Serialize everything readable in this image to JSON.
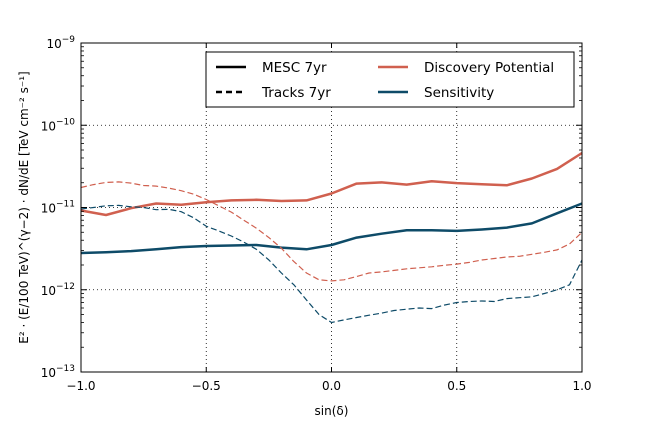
{
  "chart_data": {
    "type": "line",
    "xlabel": "sin(δ)",
    "ylabel": "E² · (E/100 TeV)^(γ−2) · dN/dE  [TeV cm⁻² s⁻¹]",
    "xlim": [
      -1.0,
      1.0
    ],
    "ylim": [
      1e-13,
      1e-09
    ],
    "yscale": "log",
    "grid": true,
    "legend_position": "upper right",
    "x_ticks": [
      "−1.0",
      "−0.5",
      "0.0",
      "0.5",
      "1.0"
    ],
    "y_ticks": [
      {
        "value": 1e-13,
        "base": "10",
        "exp": "−13"
      },
      {
        "value": 1e-12,
        "base": "10",
        "exp": "−12"
      },
      {
        "value": 1e-11,
        "base": "10",
        "exp": "−11"
      },
      {
        "value": 1e-10,
        "base": "10",
        "exp": "−10"
      },
      {
        "value": 1e-09,
        "base": "10",
        "exp": "−9"
      }
    ],
    "legend": [
      {
        "label": "MESC 7yr",
        "kind": "style",
        "dash": "solid",
        "color": "#000000"
      },
      {
        "label": "Tracks 7yr",
        "kind": "style",
        "dash": "dashed",
        "color": "#000000"
      },
      {
        "label": "Discovery Potential",
        "kind": "color",
        "dash": "solid",
        "color": "#d0604f"
      },
      {
        "label": "Sensitivity",
        "kind": "color",
        "dash": "solid",
        "color": "#0e4b68"
      }
    ],
    "series": [
      {
        "key": "mesc-discovery",
        "color": "#d0604f",
        "dash": "solid",
        "width": 2.5,
        "x": [
          -1.0,
          -0.9,
          -0.8,
          -0.7,
          -0.6,
          -0.5,
          -0.4,
          -0.3,
          -0.2,
          -0.1,
          0.0,
          0.1,
          0.2,
          0.3,
          0.4,
          0.5,
          0.6,
          0.7,
          0.8,
          0.9,
          1.0
        ],
        "y": [
          9.2e-12,
          8.1e-12,
          9.8e-12,
          1.12e-11,
          1.08e-11,
          1.16e-11,
          1.22e-11,
          1.24e-11,
          1.2e-11,
          1.22e-11,
          1.48e-11,
          1.95e-11,
          2.02e-11,
          1.9e-11,
          2.08e-11,
          1.98e-11,
          1.92e-11,
          1.86e-11,
          2.25e-11,
          2.95e-11,
          4.6e-11
        ]
      },
      {
        "key": "mesc-sensitivity",
        "color": "#0e4b68",
        "dash": "solid",
        "width": 2.5,
        "x": [
          -1.0,
          -0.9,
          -0.8,
          -0.7,
          -0.6,
          -0.5,
          -0.4,
          -0.3,
          -0.2,
          -0.1,
          0.0,
          0.1,
          0.2,
          0.3,
          0.4,
          0.5,
          0.6,
          0.7,
          0.8,
          0.9,
          1.0
        ],
        "y": [
          2.8e-12,
          2.85e-12,
          2.95e-12,
          3.1e-12,
          3.3e-12,
          3.4e-12,
          3.45e-12,
          3.5e-12,
          3.25e-12,
          3.1e-12,
          3.5e-12,
          4.3e-12,
          4.8e-12,
          5.3e-12,
          5.3e-12,
          5.2e-12,
          5.4e-12,
          5.7e-12,
          6.4e-12,
          8.5e-12,
          1.12e-11
        ]
      },
      {
        "key": "tracks-discovery",
        "color": "#d0604f",
        "dash": "dashed",
        "width": 1.2,
        "x": [
          -1.0,
          -0.95,
          -0.9,
          -0.85,
          -0.8,
          -0.75,
          -0.7,
          -0.65,
          -0.6,
          -0.55,
          -0.5,
          -0.45,
          -0.4,
          -0.35,
          -0.3,
          -0.25,
          -0.2,
          -0.15,
          -0.1,
          -0.05,
          0.0,
          0.05,
          0.1,
          0.15,
          0.2,
          0.25,
          0.3,
          0.35,
          0.4,
          0.45,
          0.5,
          0.55,
          0.6,
          0.65,
          0.7,
          0.75,
          0.8,
          0.85,
          0.9,
          0.95,
          1.0
        ],
        "y": [
          1.75e-11,
          1.9e-11,
          2.02e-11,
          2.05e-11,
          1.98e-11,
          1.85e-11,
          1.82e-11,
          1.72e-11,
          1.6e-11,
          1.45e-11,
          1.25e-11,
          1.05e-11,
          8.8e-12,
          7e-12,
          5.6e-12,
          4.3e-12,
          3.2e-12,
          2.2e-12,
          1.6e-12,
          1.32e-12,
          1.28e-12,
          1.32e-12,
          1.45e-12,
          1.6e-12,
          1.65e-12,
          1.72e-12,
          1.8e-12,
          1.85e-12,
          1.9e-12,
          1.98e-12,
          2.05e-12,
          2.15e-12,
          2.3e-12,
          2.4e-12,
          2.5e-12,
          2.55e-12,
          2.7e-12,
          2.85e-12,
          3.05e-12,
          3.6e-12,
          5e-12
        ]
      },
      {
        "key": "tracks-sensitivity",
        "color": "#0e4b68",
        "dash": "dashed",
        "width": 1.2,
        "x": [
          -1.0,
          -0.95,
          -0.9,
          -0.85,
          -0.8,
          -0.75,
          -0.7,
          -0.65,
          -0.6,
          -0.55,
          -0.5,
          -0.45,
          -0.4,
          -0.35,
          -0.3,
          -0.25,
          -0.2,
          -0.15,
          -0.1,
          -0.05,
          0.0,
          0.05,
          0.1,
          0.15,
          0.2,
          0.25,
          0.3,
          0.35,
          0.4,
          0.45,
          0.5,
          0.55,
          0.6,
          0.65,
          0.7,
          0.75,
          0.8,
          0.85,
          0.9,
          0.95,
          1.0
        ],
        "y": [
          9.6e-12,
          1e-11,
          1.05e-11,
          1.06e-11,
          1.02e-11,
          1e-11,
          9.4e-12,
          9.5e-12,
          8.9e-12,
          7.5e-12,
          5.9e-12,
          5.2e-12,
          4.5e-12,
          3.8e-12,
          3.1e-12,
          2.3e-12,
          1.6e-12,
          1.15e-12,
          7.5e-13,
          5e-13,
          4e-13,
          4.3e-13,
          4.6e-13,
          4.9e-13,
          5.2e-13,
          5.6e-13,
          5.8e-13,
          6e-13,
          5.9e-13,
          6.5e-13,
          7e-13,
          7.2e-13,
          7.3e-13,
          7.2e-13,
          7.8e-13,
          8e-13,
          8.2e-13,
          9e-13,
          1e-12,
          1.15e-12,
          2.3e-12
        ]
      }
    ]
  }
}
